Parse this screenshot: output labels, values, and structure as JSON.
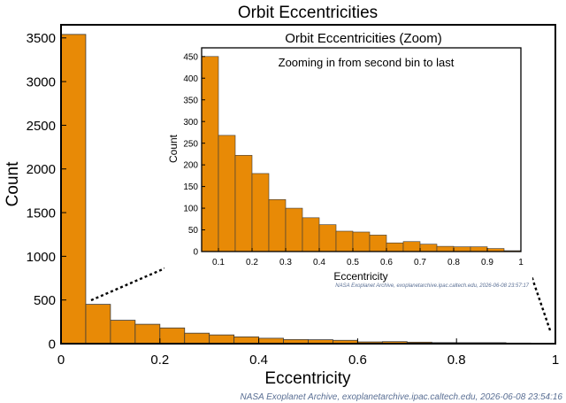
{
  "chart_data": [
    {
      "type": "bar",
      "title": "Orbit Eccentricities",
      "xlabel": "Eccentricity",
      "ylabel": "Count",
      "xlim": [
        0,
        1
      ],
      "ylim": [
        0,
        3650
      ],
      "xticks": [
        0,
        0.2,
        0.4,
        0.6,
        0.8,
        1
      ],
      "xtick_labels": [
        "0",
        "0.2",
        "0.4",
        "0.6",
        "0.8",
        "1"
      ],
      "yticks": [
        0,
        500,
        1000,
        1500,
        2000,
        2500,
        3000,
        3500
      ],
      "ytick_labels": [
        "0",
        "500",
        "1000",
        "1500",
        "2000",
        "2500",
        "3000",
        "3500"
      ],
      "bin_edges": [
        0,
        0.05,
        0.1,
        0.15,
        0.2,
        0.25,
        0.3,
        0.35,
        0.4,
        0.45,
        0.5,
        0.55,
        0.6,
        0.65,
        0.7,
        0.75,
        0.8,
        0.85,
        0.9,
        0.95,
        1.0
      ],
      "values": [
        3540,
        450,
        268,
        222,
        180,
        120,
        100,
        78,
        62,
        47,
        45,
        38,
        20,
        23,
        17,
        12,
        11,
        11,
        7,
        2
      ],
      "bar_color": "#E88A06",
      "credit": "NASA Exoplanet Archive, exoplanetarchive.ipac.caltech.edu, 2026-06-08 23:54:16"
    },
    {
      "type": "bar",
      "title": "Orbit Eccentricities (Zoom)",
      "subtitle": "Zooming in from second bin to last",
      "xlabel": "Eccentricity",
      "ylabel": "Count",
      "xlim": [
        0.05,
        1
      ],
      "ylim": [
        0,
        470
      ],
      "xticks": [
        0.1,
        0.2,
        0.3,
        0.4,
        0.5,
        0.6,
        0.7,
        0.8,
        0.9,
        1
      ],
      "xtick_labels": [
        "0.1",
        "0.2",
        "0.3",
        "0.4",
        "0.5",
        "0.6",
        "0.7",
        "0.8",
        "0.9",
        "1"
      ],
      "yticks": [
        0,
        50,
        100,
        150,
        200,
        250,
        300,
        350,
        400,
        450
      ],
      "ytick_labels": [
        "0",
        "50",
        "100",
        "150",
        "200",
        "250",
        "300",
        "350",
        "400",
        "450"
      ],
      "bin_edges": [
        0.05,
        0.1,
        0.15,
        0.2,
        0.25,
        0.3,
        0.35,
        0.4,
        0.45,
        0.5,
        0.55,
        0.6,
        0.65,
        0.7,
        0.75,
        0.8,
        0.85,
        0.9,
        0.95,
        1.0
      ],
      "values": [
        450,
        268,
        222,
        180,
        120,
        100,
        78,
        62,
        47,
        45,
        38,
        20,
        23,
        17,
        12,
        11,
        11,
        7,
        2
      ],
      "bar_color": "#E88A06",
      "credit": "NASA Exoplanet Archive, exoplanetarchive.ipac.caltech.edu, 2026-06-08 23:57:17"
    }
  ],
  "colors": {
    "bar_stroke": "#3a3a3a",
    "axis": "#000000",
    "credit_text": "#5a6f94"
  }
}
